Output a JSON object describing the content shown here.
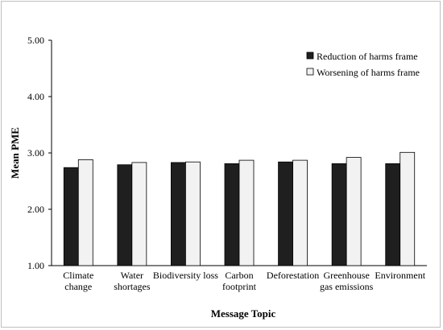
{
  "chart_data": {
    "type": "bar",
    "xlabel": "Message Topic",
    "ylabel": "Mean PME",
    "ylim": [
      1.0,
      5.0
    ],
    "yticks": [
      "1.00",
      "2.00",
      "3.00",
      "4.00",
      "5.00"
    ],
    "categories": [
      [
        "Climate",
        "change"
      ],
      [
        "Water",
        "shortages"
      ],
      [
        "Biodiversity loss"
      ],
      [
        "Carbon",
        "footprint"
      ],
      [
        "Deforestation"
      ],
      [
        "Greenhouse",
        "gas emissions"
      ],
      [
        "Environment"
      ]
    ],
    "series": [
      {
        "name": "Reduction of harms frame",
        "color": "#1f1f1f",
        "values": [
          2.74,
          2.79,
          2.83,
          2.81,
          2.84,
          2.81,
          2.81
        ]
      },
      {
        "name": "Worsening of harms frame",
        "color": "#f2f2f2",
        "values": [
          2.88,
          2.83,
          2.84,
          2.87,
          2.87,
          2.92,
          3.01
        ]
      }
    ],
    "grid": false,
    "legend": "top-right"
  }
}
